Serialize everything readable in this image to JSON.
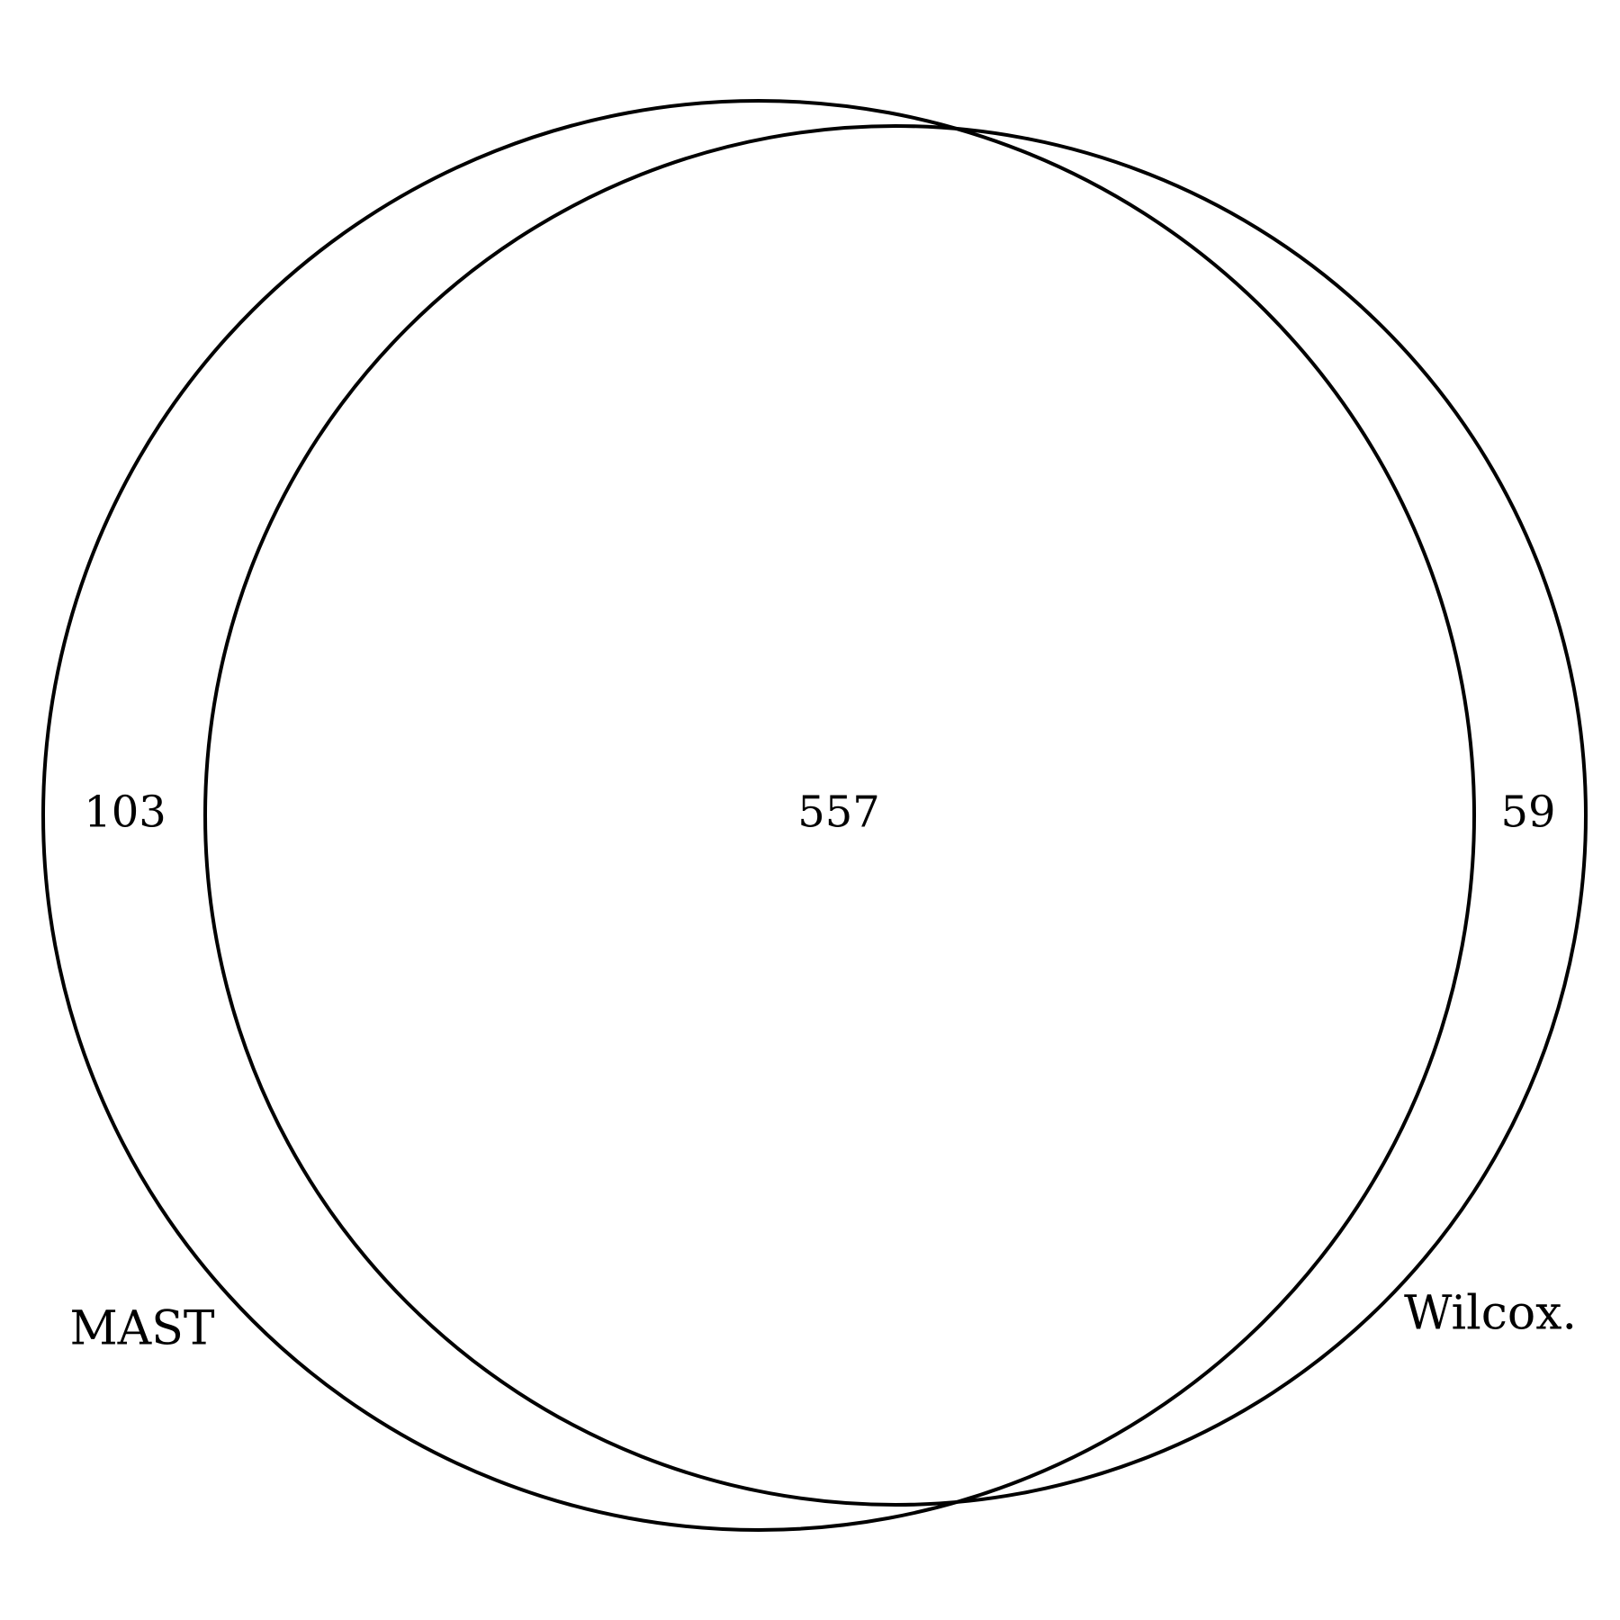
{
  "diagram": {
    "type": "venn-2",
    "sets": [
      {
        "label": "MAST",
        "only_count": "103"
      },
      {
        "label": "Wilcox.",
        "only_count": "59"
      }
    ],
    "intersection_count": "557",
    "outline_color": "#000000",
    "background_color": "#ffffff"
  }
}
